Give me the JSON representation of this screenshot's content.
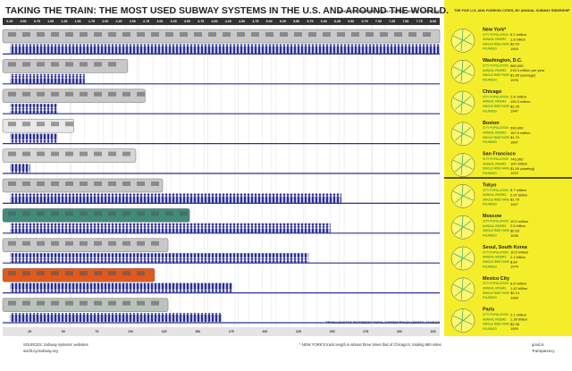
{
  "chart_data": {
    "type": "bar",
    "title": "TAKING THE TRAIN: THE MOST USED SUBWAY SYSTEMS IN THE U.S. AND AROUND THE WORLD.",
    "ridership_axis_label": "SILHOUETTES REPRESENT DAILY SUBWAY RIDERS, IN MILLIONS",
    "length_axis_label": "TRAIN LENGTHS REPRESENT TOTAL SYSTEM TRACK LENGTH, IN MILES",
    "categories": [
      "New York*",
      "Washington, D.C.",
      "Chicago",
      "Boston",
      "San Francisco",
      "Tokyo",
      "Moscow",
      "Seoul, South Korea",
      "Mexico City",
      "Paris"
    ],
    "ridership": [
      8.0,
      1.5,
      1.0,
      1.0,
      0.5,
      6.2,
      6.0,
      5.6,
      4.2,
      4.0
    ],
    "track_length": [
      325,
      93,
      106,
      53,
      99,
      119,
      139,
      123,
      113,
      123
    ],
    "train_colors": [
      "#c8c8c8",
      "#c8c8c8",
      "#c8c8c8",
      "#e8e8e8",
      "#d6d6d6",
      "#c8c8c8",
      "#3f8c7c",
      "#c8c8c8",
      "#e05a1f",
      "#b9c2bb"
    ],
    "rider_color": "#2d3092",
    "xlim": [
      0,
      8
    ],
    "xticks": [
      0.25,
      {
        "value": 0.5,
        "label": "0.50"
      },
      0.75,
      {
        "value": 1,
        "label": "1.00"
      },
      1.25,
      {
        "value": 1.5,
        "label": "1.50"
      },
      1.75,
      {
        "value": 2,
        "label": "2.00"
      },
      2.25,
      {
        "value": 2.5,
        "label": "2.50"
      },
      2.75,
      {
        "value": 3,
        "label": "3.00"
      },
      3.25,
      {
        "value": 3.5,
        "label": "3.50"
      },
      3.75,
      {
        "value": 4,
        "label": "4.00"
      },
      4.25,
      {
        "value": 4.5,
        "label": "4.50"
      },
      4.75,
      {
        "value": 5,
        "label": "5.00"
      },
      5.25,
      {
        "value": 5.5,
        "label": "5.50"
      },
      5.75,
      {
        "value": 6,
        "label": "6.00"
      },
      6.25,
      {
        "value": 6.5,
        "label": "6.50"
      },
      6.75,
      {
        "value": 7,
        "label": "7.00"
      },
      7.25,
      {
        "value": 7.5,
        "label": "7.50"
      },
      7.75,
      {
        "value": 8,
        "label": "8.00"
      }
    ],
    "x2lim": [
      0,
      325
    ],
    "x2ticks": [
      25,
      50,
      75,
      100,
      125,
      150,
      175,
      200,
      225,
      250,
      275,
      300,
      325
    ],
    "grid": true
  },
  "panel": {
    "title": "THE FIVE U.S. AND FOREIGN CITIES, BY ANNUAL SUBWAY RIDERSHIP",
    "stat_labels": [
      "CITY POPULATION",
      "ANNUAL RIDERS",
      "SINGLE RIDE FARE",
      "FOUNDED"
    ],
    "stats": [
      [
        "8.2 million",
        "1.6 billion",
        "$2.00",
        1904
      ],
      [
        "580,000",
        "215.3 million per year",
        "$1.85 (average)",
        1976
      ],
      [
        "2.8 million",
        "190.3 million",
        "$2.25",
        1947
      ],
      [
        "590,000",
        "167.9 million",
        "$1.70",
        1897
      ],
      [
        "745,000",
        "100 million",
        "$1.50 (starting)",
        1972
      ],
      [
        "8.7 million",
        "2.97 billion",
        "$1.79",
        1927
      ],
      [
        "10.2 million",
        "2.5 billion",
        "$0.53",
        1935
      ],
      [
        "10.5 million",
        "2.1 billion",
        "$.64",
        1974
      ],
      [
        "8.8 million",
        "1.42 billion",
        "$0.14",
        1969
      ],
      [
        "2.1 million",
        "1.39 billion",
        "$2.08",
        1900
      ]
    ]
  },
  "footer": {
    "sources": "SOURCES: Subway systems' websites",
    "site": "world.nycsubway.org",
    "note": "* NEW YORK'S track length is almost three times that of Chicago's, totaling 660 miles.",
    "credit": "good.is",
    "credit2": "Transparency"
  }
}
